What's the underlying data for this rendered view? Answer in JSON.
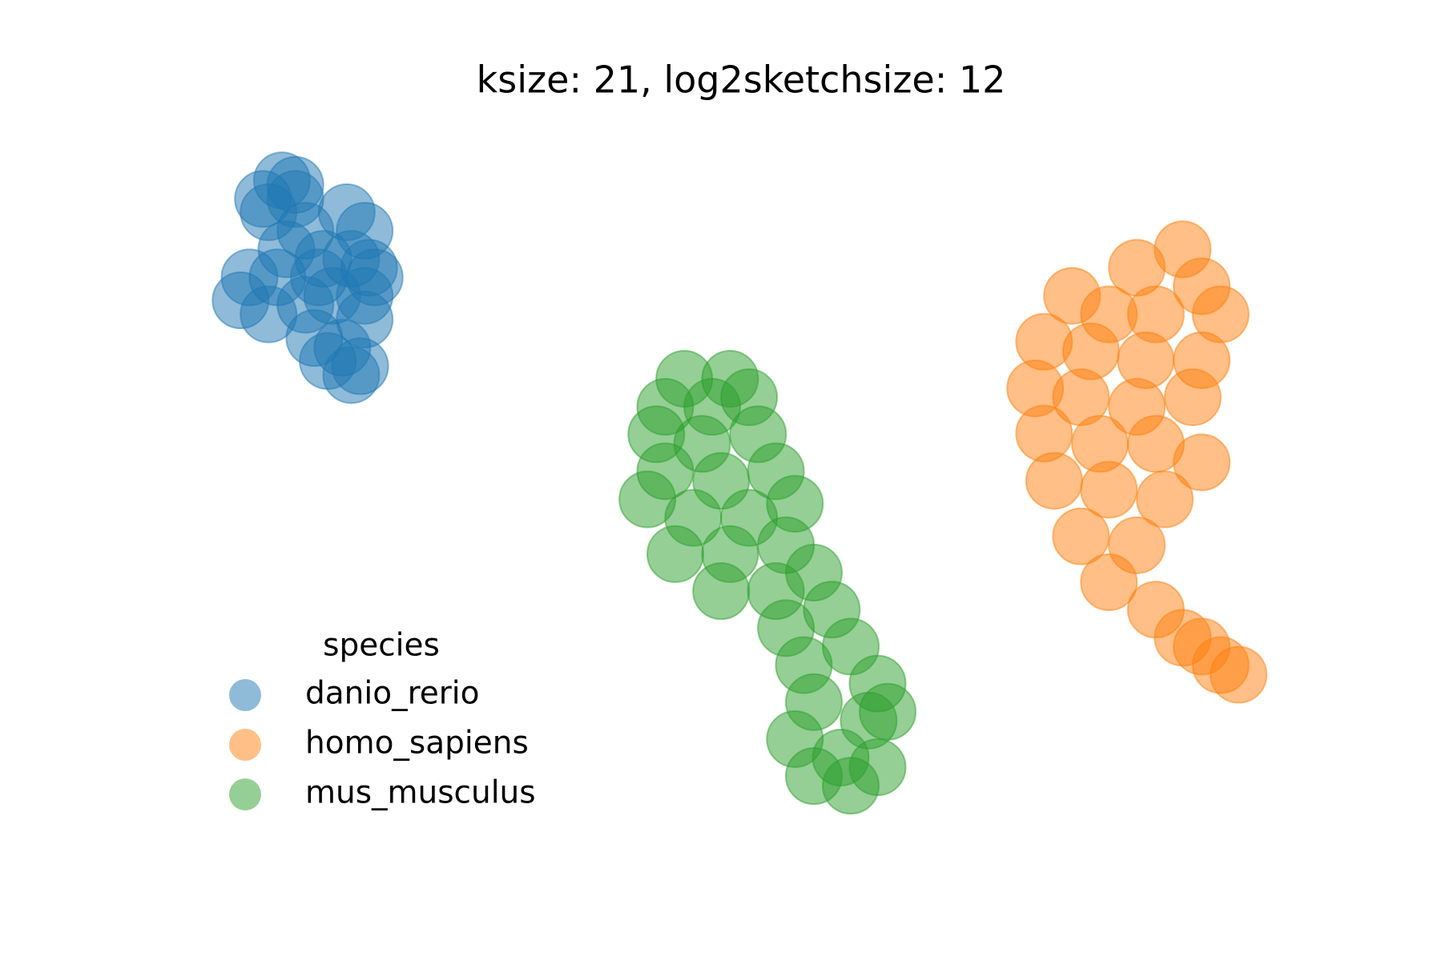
{
  "chart_data": {
    "type": "scatter",
    "title": "ksize: 21, log2sketchsize: 12",
    "legend_title": "species",
    "legend": "lower left",
    "xlim": [
      0,
      100
    ],
    "ylim": [
      0,
      100
    ],
    "series": [
      {
        "name": "danio_rerio",
        "color": "#1f77b4",
        "x": [
          9.1,
          10.3,
          7.9,
          11.2,
          14.9,
          16.5,
          16.9,
          15.3,
          12.8,
          9.5,
          6.2,
          5.4,
          7.9,
          11.2,
          13.6,
          16.5,
          16.5,
          12.0,
          14.5,
          16.1,
          15.3,
          13.2,
          8.7,
          12.4,
          10.3,
          7.4,
          17.4
        ],
        "y": [
          91.2,
          88.7,
          86.9,
          84.4,
          86.9,
          84.4,
          79.4,
          80.6,
          80.6,
          81.9,
          78.1,
          75.0,
          73.1,
          74.4,
          75.6,
          75.6,
          72.4,
          69.9,
          68.6,
          66.1,
          64.9,
          66.8,
          78.1,
          78.1,
          90.6,
          88.7,
          78.1
        ]
      },
      {
        "name": "homo_sapiens",
        "color": "#ff7f0e",
        "x": [
          89.7,
          85.6,
          79.8,
          91.4,
          83.1,
          87.3,
          93.1,
          77.3,
          81.5,
          86.4,
          91.4,
          76.5,
          80.6,
          85.6,
          90.6,
          77.3,
          82.3,
          87.3,
          91.4,
          78.2,
          83.1,
          88.1,
          80.6,
          85.6,
          83.1,
          87.3,
          89.7,
          93.1,
          91.4,
          94.7
        ],
        "y": [
          81.9,
          79.4,
          75.6,
          76.9,
          73.1,
          73.1,
          73.1,
          69.4,
          68.1,
          66.9,
          66.9,
          63.1,
          61.9,
          60.6,
          61.9,
          57.0,
          55.6,
          55.6,
          53.1,
          50.6,
          49.4,
          48.1,
          43.1,
          41.9,
          36.9,
          33.2,
          29.4,
          25.7,
          28.2,
          24.4
        ]
      },
      {
        "name": "mus_musculus",
        "color": "#2ca02c",
        "x": [
          45.1,
          49.2,
          43.4,
          47.6,
          50.9,
          42.6,
          46.7,
          51.7,
          43.4,
          48.4,
          53.3,
          41.8,
          45.9,
          50.9,
          55.0,
          44.3,
          49.2,
          54.2,
          48.4,
          53.3,
          56.7,
          54.2,
          58.3,
          55.8,
          60.0,
          62.4,
          56.7,
          61.6,
          63.3,
          55.0,
          59.1,
          62.4,
          56.7,
          60.0
        ],
        "y": [
          64.4,
          64.4,
          60.6,
          60.6,
          61.9,
          56.9,
          55.6,
          56.9,
          51.9,
          50.6,
          51.9,
          48.1,
          45.6,
          45.6,
          47.5,
          40.7,
          40.7,
          41.9,
          35.7,
          35.7,
          38.2,
          30.7,
          33.2,
          25.7,
          28.2,
          23.2,
          20.7,
          18.2,
          19.4,
          15.7,
          13.2,
          11.9,
          10.7,
          9.4
        ]
      }
    ]
  }
}
